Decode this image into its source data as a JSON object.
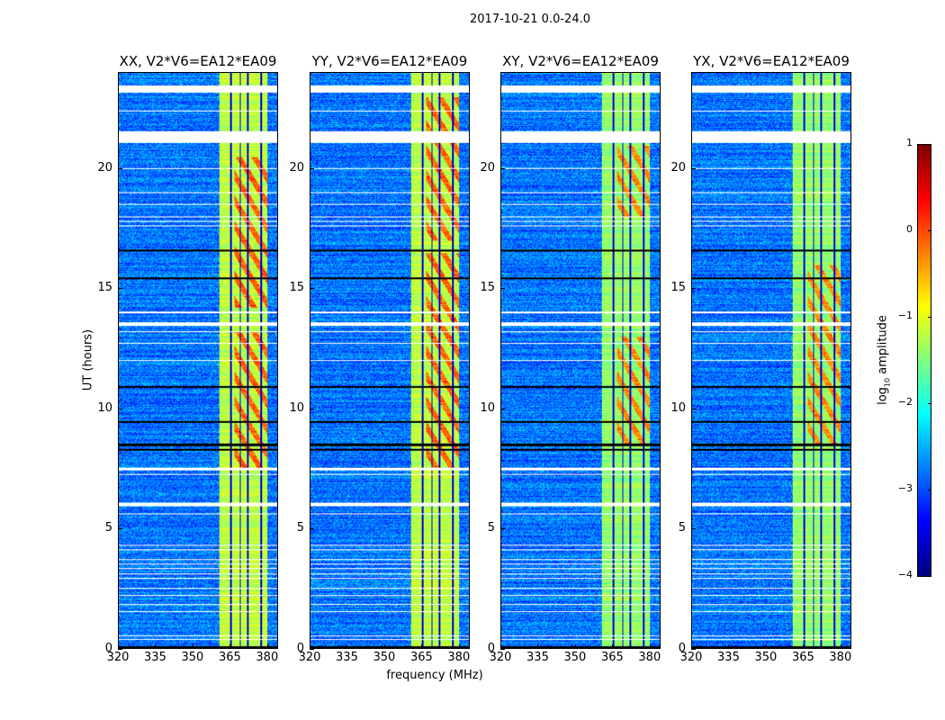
{
  "chart_data": {
    "type": "heatmap",
    "title": "2017-10-21 0.0-24.0",
    "xlabel": "frequency (MHz)",
    "ylabel": "UT (hours)",
    "xlim": [
      320,
      384.4
    ],
    "ylim": [
      0,
      24
    ],
    "xticks": [
      320,
      335,
      350,
      365,
      380
    ],
    "yticks": [
      0,
      5,
      10,
      15,
      20
    ],
    "panels": [
      {
        "title": "XX, V2*V6=EA12*EA09",
        "band_level": -1.2,
        "hot_hours": [
          [
            7.5,
            13.2
          ],
          [
            14.2,
            20.5
          ]
        ]
      },
      {
        "title": "YY, V2*V6=EA12*EA09",
        "band_level": -1.2,
        "hot_hours": [
          [
            7.5,
            16.5
          ],
          [
            17,
            23
          ]
        ]
      },
      {
        "title": "XY, V2*V6=EA12*EA09",
        "band_level": -1.4,
        "hot_hours": [
          [
            8.5,
            13
          ],
          [
            18,
            21
          ]
        ]
      },
      {
        "title": "YX, V2*V6=EA12*EA09",
        "band_level": -1.4,
        "hot_hours": [
          [
            8.5,
            16
          ]
        ]
      }
    ],
    "rfi_band_mhz": [
      360.7,
      380.4
    ],
    "band_gaps_mhz": [
      365.5,
      369.2,
      372.3,
      377.6
    ],
    "background_level": -2.8,
    "flagged_white_hours": [
      [
        23.2,
        23.5
      ],
      [
        22.4,
        22.45
      ],
      [
        21.1,
        21.6
      ],
      [
        20.0,
        20.05
      ],
      [
        19.0,
        19.04
      ],
      [
        18.5,
        18.54
      ],
      [
        18.0,
        18.04
      ],
      [
        17.8,
        17.84
      ],
      [
        17.6,
        17.64
      ],
      [
        14.0,
        14.05
      ],
      [
        13.45,
        13.6
      ],
      [
        13.2,
        13.24
      ],
      [
        12.7,
        12.74
      ],
      [
        12.0,
        12.03
      ],
      [
        7.45,
        7.55
      ],
      [
        7.25,
        7.3
      ],
      [
        5.95,
        6.08
      ],
      [
        5.6,
        5.64
      ],
      [
        4.3,
        4.34
      ],
      [
        4.1,
        4.14
      ],
      [
        3.7,
        3.74
      ],
      [
        3.5,
        3.54
      ],
      [
        3.3,
        3.34
      ],
      [
        3.1,
        3.14
      ],
      [
        2.9,
        2.94
      ],
      [
        2.5,
        2.54
      ],
      [
        2.2,
        2.24
      ],
      [
        1.8,
        1.84
      ],
      [
        1.5,
        1.54
      ],
      [
        0.5,
        0.54
      ],
      [
        0.35,
        0.39
      ]
    ],
    "flagged_black_hours": [
      16.6,
      15.45,
      10.9,
      9.45,
      8.5,
      8.3,
      0.05
    ],
    "colorbar": {
      "label_prefix": "log",
      "label_sub": "10",
      "label_suffix": " amplitude",
      "colormap": "jet",
      "range": [
        -4,
        1
      ],
      "ticks": [
        1,
        0,
        -1,
        -2,
        -3,
        -4
      ],
      "tick_labels": [
        "1",
        "0",
        "−1",
        "−2",
        "−3",
        "−4"
      ]
    }
  }
}
